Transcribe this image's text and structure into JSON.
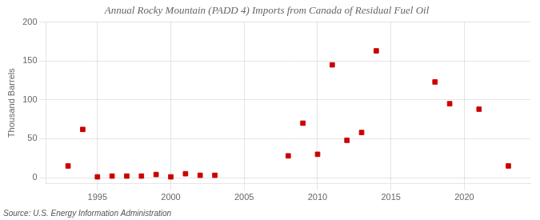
{
  "chart_data": {
    "type": "scatter",
    "title": "Annual Rocky Mountain (PADD 4) Imports from Canada of Residual Fuel Oil",
    "ylabel": "Thousand Barrels",
    "source": "Source: U.S. Energy Information Administration",
    "x": [
      1993,
      1994,
      1995,
      1996,
      1997,
      1998,
      1999,
      2000,
      2001,
      2002,
      2003,
      2008,
      2009,
      2010,
      2011,
      2012,
      2013,
      2014,
      2018,
      2019,
      2021,
      2023
    ],
    "values": [
      15,
      62,
      1,
      2,
      2,
      2,
      4,
      1,
      5,
      3,
      3,
      28,
      70,
      30,
      145,
      48,
      58,
      163,
      123,
      95,
      88,
      15
    ],
    "color": "#cc0000",
    "marker": "square",
    "xlim": [
      1991.5,
      2024.5
    ],
    "ylim": [
      -8,
      200
    ],
    "xticks": [
      1995,
      2000,
      2005,
      2010,
      2015,
      2020
    ],
    "yticks": [
      0,
      50,
      100,
      150,
      200
    ],
    "grid": true
  }
}
